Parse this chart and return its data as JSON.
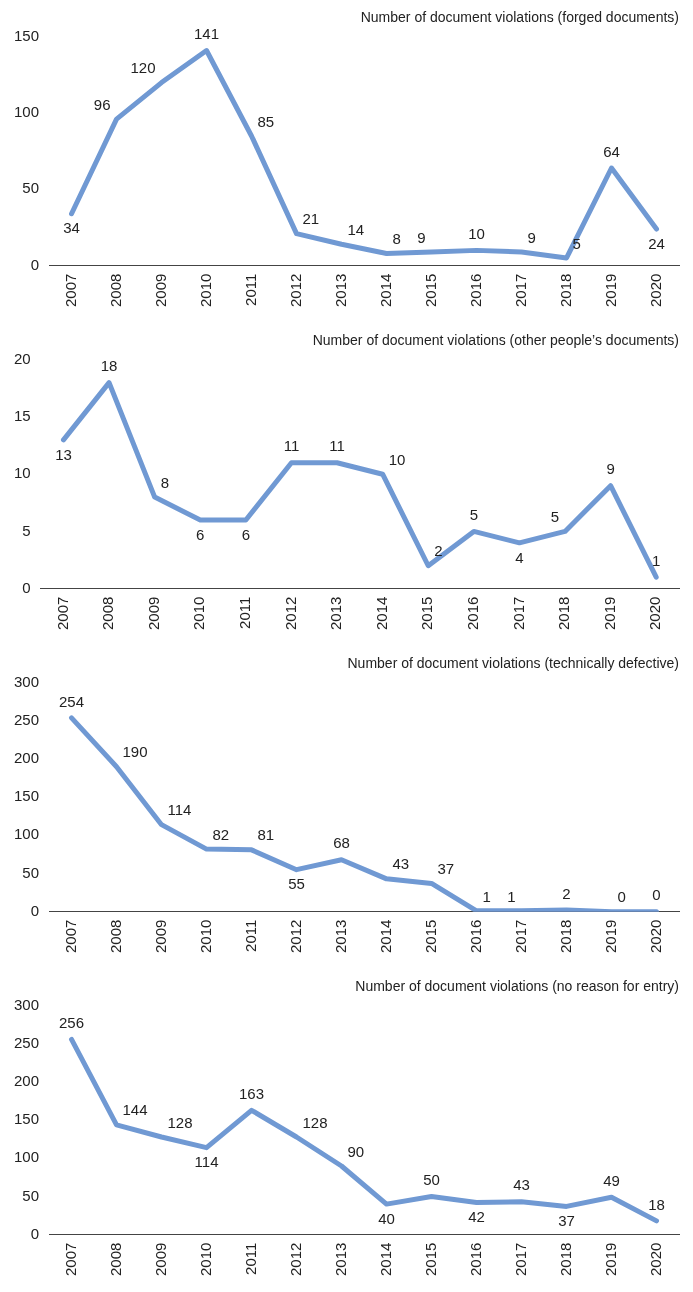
{
  "chart_data": [
    {
      "type": "line",
      "title": "Number of document violations (forged documents)",
      "categories": [
        "2007",
        "2008",
        "2009",
        "2010",
        "2011",
        "2012",
        "2013",
        "2014",
        "2015",
        "2016",
        "2017",
        "2018",
        "2019",
        "2020"
      ],
      "values": [
        34,
        96,
        120,
        141,
        85,
        21,
        14,
        8,
        9,
        10,
        9,
        5,
        64,
        24
      ],
      "color": "#7099d3",
      "ylim": [
        0,
        150
      ],
      "yticks": [
        0,
        50,
        100,
        150
      ],
      "data_labels": true,
      "marker": "none"
    },
    {
      "type": "line",
      "title": "Number of document violations (other people’s documents)",
      "categories": [
        "2007",
        "2008",
        "2009",
        "2010",
        "2011",
        "2012",
        "2013",
        "2014",
        "2015",
        "2016",
        "2017",
        "2018",
        "2019",
        "2020"
      ],
      "values": [
        13,
        18,
        8,
        6,
        6,
        11,
        11,
        10,
        2,
        5,
        4,
        5,
        9,
        1
      ],
      "color": "#7099d3",
      "ylim": [
        0,
        20
      ],
      "yticks": [
        0,
        5,
        10,
        15,
        20
      ],
      "data_labels": true,
      "marker": "none"
    },
    {
      "type": "line",
      "title": "Number of document violations (technically defective)",
      "categories": [
        "2007",
        "2008",
        "2009",
        "2010",
        "2011",
        "2012",
        "2013",
        "2014",
        "2015",
        "2016",
        "2017",
        "2018",
        "2019",
        "2020"
      ],
      "values": [
        254,
        190,
        114,
        82,
        81,
        55,
        68,
        43,
        37,
        1,
        1,
        2,
        0,
        0
      ],
      "color": "#7099d3",
      "ylim": [
        0,
        300
      ],
      "yticks": [
        0,
        50,
        100,
        150,
        200,
        250,
        300
      ],
      "data_labels": true,
      "marker": "none"
    },
    {
      "type": "line",
      "title": "Number of document violations (no reason for entry)",
      "categories": [
        "2007",
        "2008",
        "2009",
        "2010",
        "2011",
        "2012",
        "2013",
        "2014",
        "2015",
        "2016",
        "2017",
        "2018",
        "2019",
        "2020"
      ],
      "values": [
        256,
        144,
        128,
        114,
        163,
        128,
        90,
        40,
        50,
        42,
        43,
        37,
        49,
        18
      ],
      "color": "#7099d3",
      "ylim": [
        0,
        300
      ],
      "yticks": [
        0,
        50,
        100,
        150,
        200,
        250,
        300
      ],
      "data_labels": true,
      "marker": "none"
    }
  ]
}
